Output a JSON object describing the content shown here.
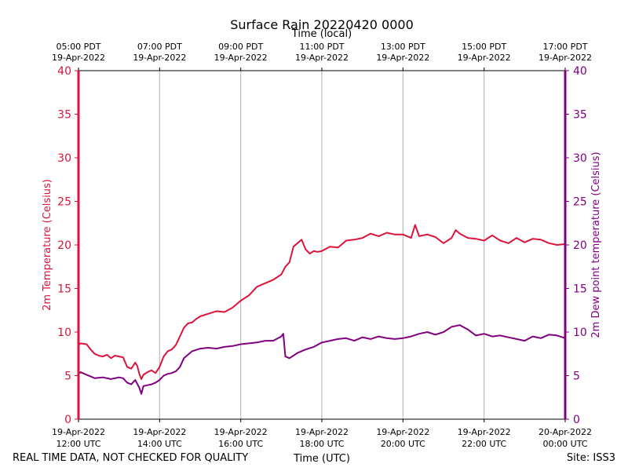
{
  "chart_data": {
    "type": "line",
    "title": "Surface Rain 20220420 0000",
    "top_axis_label": "Time (local)",
    "xlabel": "Time (UTC)",
    "ylabel_left": "2m Temperature (Celsius)",
    "ylabel_right": "2m Dew point temperature (Celsius)",
    "footer_left": "REAL TIME DATA, NOT CHECKED FOR QUALITY",
    "footer_right": "Site: ISS3",
    "colors": {
      "temperature": "#dc143c",
      "dewpoint": "#800080",
      "grid": "#b0b0b0",
      "axis": "#000000"
    },
    "xlim_hours": [
      12,
      24
    ],
    "ylim_left": [
      0,
      40
    ],
    "ylim_right": [
      0,
      40
    ],
    "y_ticks_left": [
      "0",
      "5",
      "10",
      "15",
      "20",
      "25",
      "30",
      "35",
      "40"
    ],
    "y_ticks_right": [
      "0",
      "5",
      "10",
      "15",
      "20",
      "25",
      "30",
      "35",
      "40"
    ],
    "x_ticks_bottom": [
      {
        "hour": 12,
        "date": "19-Apr-2022",
        "time": "12:00 UTC"
      },
      {
        "hour": 14,
        "date": "19-Apr-2022",
        "time": "14:00 UTC"
      },
      {
        "hour": 16,
        "date": "19-Apr-2022",
        "time": "16:00 UTC"
      },
      {
        "hour": 18,
        "date": "19-Apr-2022",
        "time": "18:00 UTC"
      },
      {
        "hour": 20,
        "date": "19-Apr-2022",
        "time": "20:00 UTC"
      },
      {
        "hour": 22,
        "date": "19-Apr-2022",
        "time": "22:00 UTC"
      },
      {
        "hour": 24,
        "date": "20-Apr-2022",
        "time": "00:00 UTC"
      }
    ],
    "x_ticks_top": [
      {
        "hour": 12,
        "time": "05:00 PDT",
        "date": "19-Apr-2022"
      },
      {
        "hour": 14,
        "time": "07:00 PDT",
        "date": "19-Apr-2022"
      },
      {
        "hour": 16,
        "time": "09:00 PDT",
        "date": "19-Apr-2022"
      },
      {
        "hour": 18,
        "time": "11:00 PDT",
        "date": "19-Apr-2022"
      },
      {
        "hour": 20,
        "time": "13:00 PDT",
        "date": "19-Apr-2022"
      },
      {
        "hour": 22,
        "time": "15:00 PDT",
        "date": "19-Apr-2022"
      },
      {
        "hour": 24,
        "time": "17:00 PDT",
        "date": "19-Apr-2022"
      }
    ],
    "series": [
      {
        "name": "2m Temperature",
        "axis": "left",
        "x": [
          12.0,
          12.05,
          12.2,
          12.3,
          12.4,
          12.5,
          12.6,
          12.7,
          12.8,
          12.9,
          13.0,
          13.1,
          13.2,
          13.3,
          13.4,
          13.45,
          13.5,
          13.55,
          13.6,
          13.7,
          13.8,
          13.9,
          14.0,
          14.1,
          14.2,
          14.3,
          14.4,
          14.5,
          14.6,
          14.7,
          14.8,
          14.9,
          15.0,
          15.2,
          15.4,
          15.6,
          15.8,
          16.0,
          16.2,
          16.4,
          16.6,
          16.8,
          17.0,
          17.1,
          17.2,
          17.3,
          17.4,
          17.5,
          17.6,
          17.7,
          17.8,
          17.9,
          18.0,
          18.2,
          18.4,
          18.6,
          18.8,
          19.0,
          19.2,
          19.4,
          19.6,
          19.8,
          20.0,
          20.2,
          20.3,
          20.4,
          20.6,
          20.8,
          21.0,
          21.2,
          21.3,
          21.4,
          21.6,
          21.8,
          22.0,
          22.2,
          22.4,
          22.6,
          22.8,
          23.0,
          23.2,
          23.4,
          23.6,
          23.8,
          24.0
        ],
        "values": [
          8.5,
          8.7,
          8.6,
          8.0,
          7.5,
          7.3,
          7.2,
          7.4,
          7.0,
          7.3,
          7.2,
          7.1,
          6.0,
          5.8,
          6.5,
          6.1,
          5.2,
          4.6,
          5.1,
          5.4,
          5.6,
          5.3,
          6.0,
          7.2,
          7.8,
          8.0,
          8.5,
          9.5,
          10.5,
          11.0,
          11.1,
          11.5,
          11.8,
          12.1,
          12.4,
          12.3,
          12.8,
          13.6,
          14.2,
          15.2,
          15.6,
          16.0,
          16.6,
          17.5,
          18.0,
          19.8,
          20.2,
          20.6,
          19.5,
          19.0,
          19.3,
          19.2,
          19.3,
          19.8,
          19.7,
          20.5,
          20.6,
          20.8,
          21.3,
          21.0,
          21.4,
          21.2,
          21.2,
          20.8,
          22.3,
          21.0,
          21.2,
          20.9,
          20.2,
          20.8,
          21.7,
          21.3,
          20.8,
          20.7,
          20.5,
          21.1,
          20.5,
          20.2,
          20.8,
          20.3,
          20.7,
          20.6,
          20.2,
          20.0,
          20.1
        ]
      },
      {
        "name": "2m Dew point temperature",
        "axis": "right",
        "x": [
          12.0,
          12.05,
          12.2,
          12.3,
          12.4,
          12.6,
          12.8,
          13.0,
          13.1,
          13.2,
          13.3,
          13.4,
          13.5,
          13.55,
          13.6,
          13.7,
          13.8,
          13.9,
          14.0,
          14.1,
          14.2,
          14.3,
          14.4,
          14.5,
          14.6,
          14.8,
          15.0,
          15.2,
          15.4,
          15.6,
          15.8,
          16.0,
          16.2,
          16.4,
          16.6,
          16.8,
          17.0,
          17.05,
          17.1,
          17.2,
          17.4,
          17.6,
          17.8,
          18.0,
          18.2,
          18.4,
          18.6,
          18.8,
          19.0,
          19.2,
          19.4,
          19.6,
          19.8,
          20.0,
          20.2,
          20.4,
          20.6,
          20.8,
          21.0,
          21.2,
          21.4,
          21.6,
          21.8,
          22.0,
          22.2,
          22.4,
          22.6,
          22.8,
          23.0,
          23.2,
          23.4,
          23.6,
          23.8,
          24.0
        ],
        "values": [
          5.2,
          5.4,
          5.1,
          4.9,
          4.7,
          4.8,
          4.6,
          4.8,
          4.7,
          4.2,
          4.0,
          4.5,
          3.6,
          2.9,
          3.8,
          3.9,
          4.0,
          4.2,
          4.5,
          5.0,
          5.2,
          5.3,
          5.5,
          6.0,
          7.0,
          7.8,
          8.1,
          8.2,
          8.1,
          8.3,
          8.4,
          8.6,
          8.7,
          8.8,
          9.0,
          9.0,
          9.5,
          9.8,
          7.2,
          7.0,
          7.6,
          8.0,
          8.3,
          8.8,
          9.0,
          9.2,
          9.3,
          9.0,
          9.4,
          9.2,
          9.5,
          9.3,
          9.2,
          9.3,
          9.5,
          9.8,
          10.0,
          9.7,
          10.0,
          10.6,
          10.8,
          10.3,
          9.6,
          9.8,
          9.5,
          9.6,
          9.4,
          9.2,
          9.0,
          9.5,
          9.3,
          9.7,
          9.6,
          9.3
        ]
      }
    ]
  }
}
